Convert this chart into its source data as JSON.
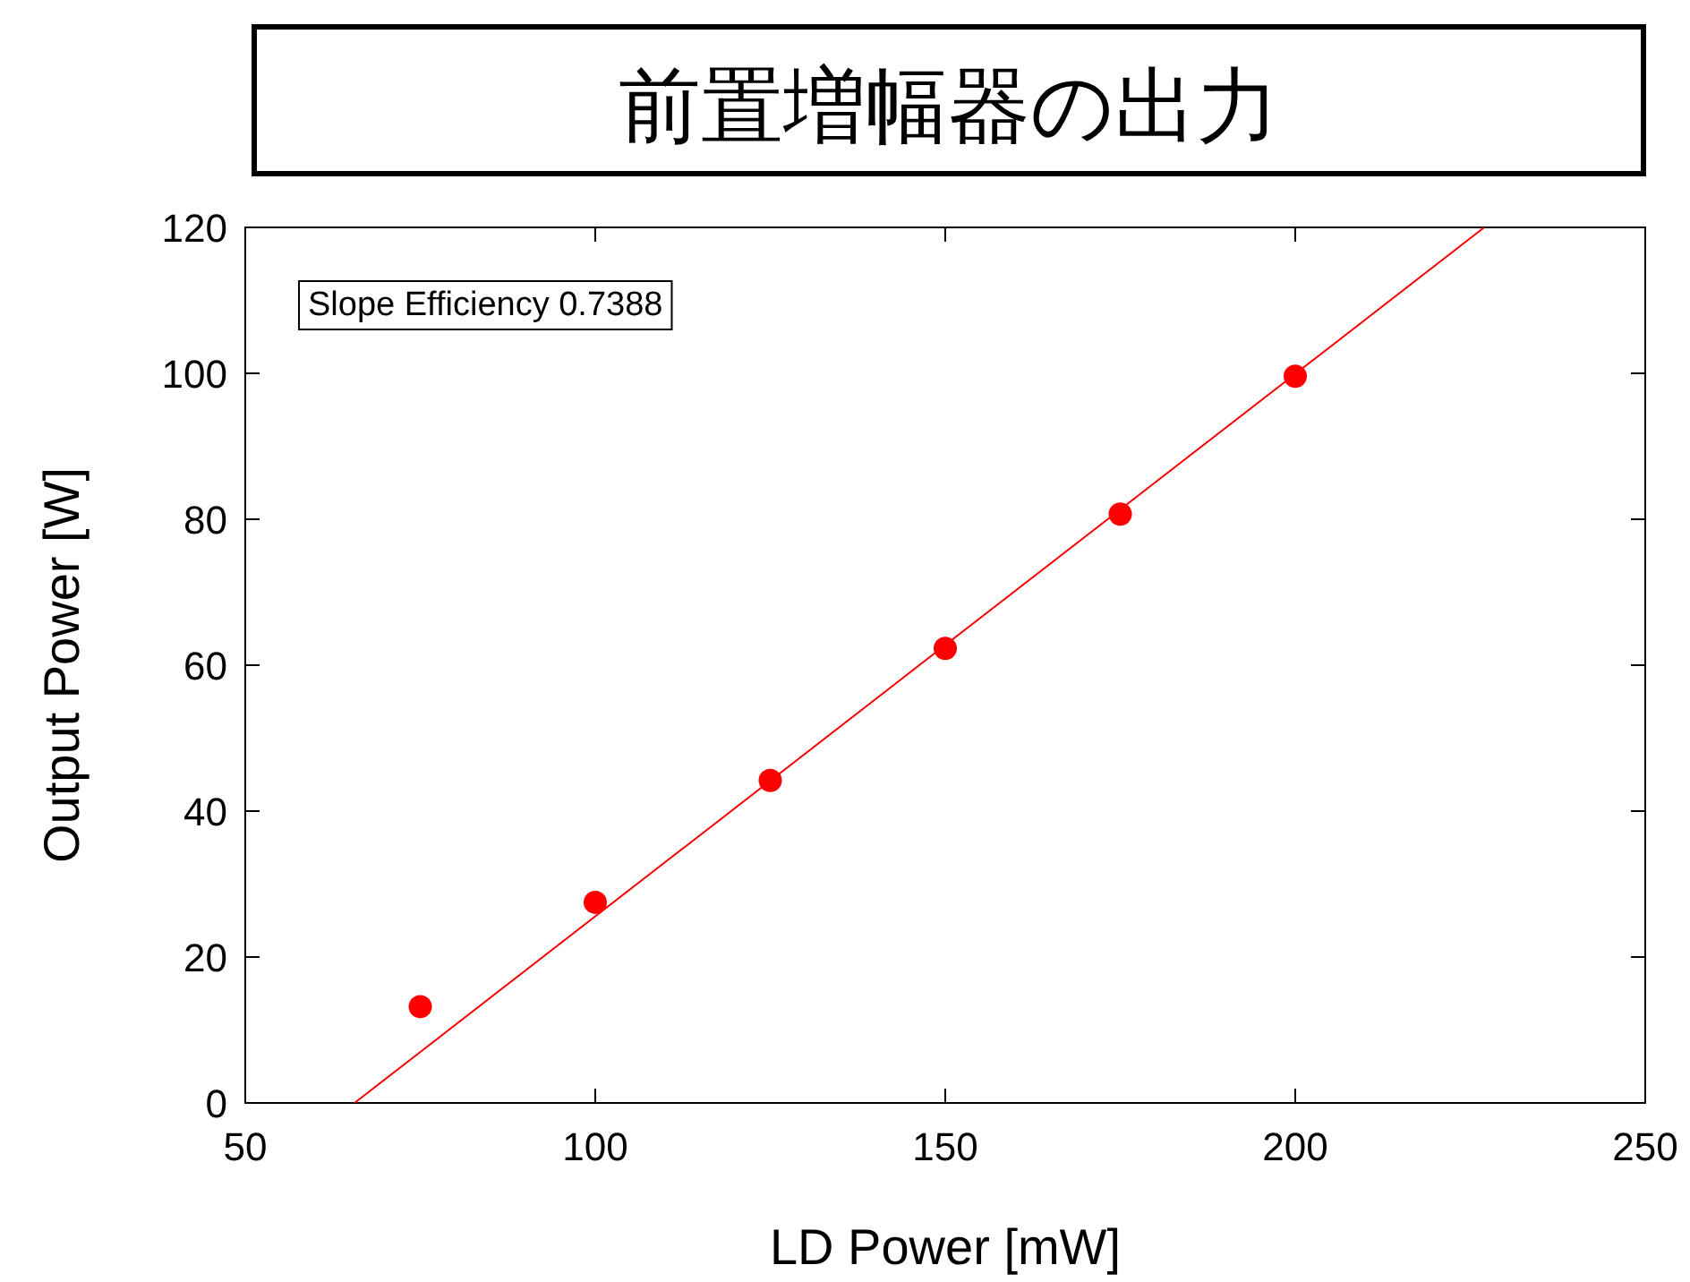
{
  "chart_data": {
    "type": "scatter",
    "title": "前置増幅器の出力",
    "xlabel": "LD Power [mW]",
    "ylabel": "Output Power [W]",
    "xlim": [
      50,
      250
    ],
    "xticks": [
      50,
      100,
      150,
      200,
      250
    ],
    "ylim": [
      0,
      120
    ],
    "yticks": [
      0,
      20,
      40,
      60,
      80,
      100,
      120
    ],
    "grid": false,
    "annotations": [
      "Slope Efficiency 0.7388"
    ],
    "series": [
      {
        "color": "#ff0000",
        "marker": "circle",
        "x": [
          75,
          100,
          125,
          150,
          175,
          200
        ],
        "values": [
          13.2,
          27.5,
          44.2,
          62.3,
          80.7,
          99.6
        ]
      },
      {
        "type": "line",
        "color": "#ff0000",
        "marker": "none",
        "line_style": "solid",
        "x": [
          65.6,
          227
        ],
        "values": [
          0,
          120
        ]
      }
    ]
  }
}
